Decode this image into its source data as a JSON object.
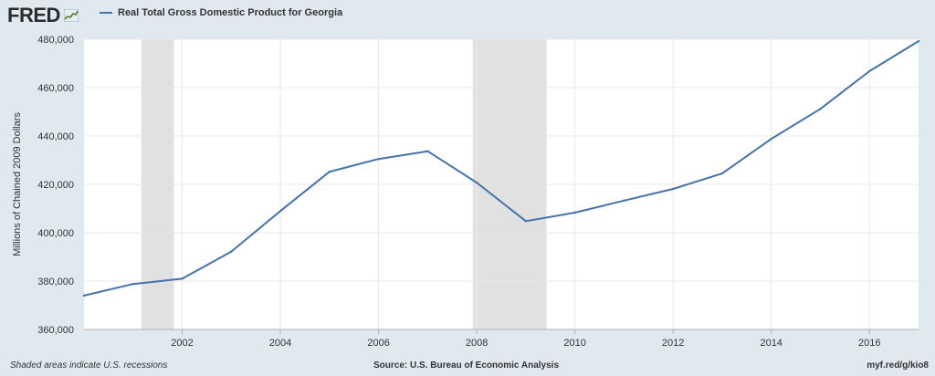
{
  "logo": {
    "text": "FRED",
    "icon": "fred-sparkline-icon"
  },
  "chart_data": {
    "type": "line",
    "series": [
      {
        "name": "Real Total Gross Domestic Product for Georgia",
        "color": "#4572a7",
        "x": [
          2000,
          2001,
          2002,
          2003,
          2004,
          2005,
          2006,
          2007,
          2008,
          2009,
          2010,
          2011,
          2012,
          2013,
          2014,
          2015,
          2016,
          2017
        ],
        "values": [
          374000,
          378800,
          381000,
          392200,
          409000,
          425200,
          430500,
          433700,
          420700,
          404800,
          408300,
          413300,
          418100,
          424500,
          438800,
          451200,
          466800,
          479200
        ]
      }
    ],
    "xlim": [
      2000,
      2017
    ],
    "xticks": [
      2002,
      2004,
      2006,
      2008,
      2010,
      2012,
      2014,
      2016
    ],
    "xtick_labels": [
      "2002",
      "2004",
      "2006",
      "2008",
      "2010",
      "2012",
      "2014",
      "2016"
    ],
    "ylim": [
      360000,
      480000
    ],
    "yticks": [
      360000,
      380000,
      400000,
      420000,
      440000,
      460000,
      480000
    ],
    "ytick_labels": [
      "360,000",
      "380,000",
      "400,000",
      "420,000",
      "440,000",
      "460,000",
      "480,000"
    ],
    "ylabel": "Millions of Chained 2009 Dollars",
    "xlabel": "",
    "grid": true,
    "legend_position": "top-left",
    "recessions": [
      {
        "start": 2001.17,
        "end": 2001.83
      },
      {
        "start": 2007.92,
        "end": 2009.42
      }
    ]
  },
  "footer": {
    "note": "Shaded areas indicate U.S. recessions",
    "source": "Source: U.S. Bureau of Economic Analysis",
    "link": "myf.red/g/kio8"
  },
  "colors": {
    "background": "#e1e9f0",
    "plot_background": "#ffffff",
    "line": "#4572a7",
    "recession": "#e1e1e1",
    "grid": "#e8e8e8",
    "text": "#333333"
  }
}
